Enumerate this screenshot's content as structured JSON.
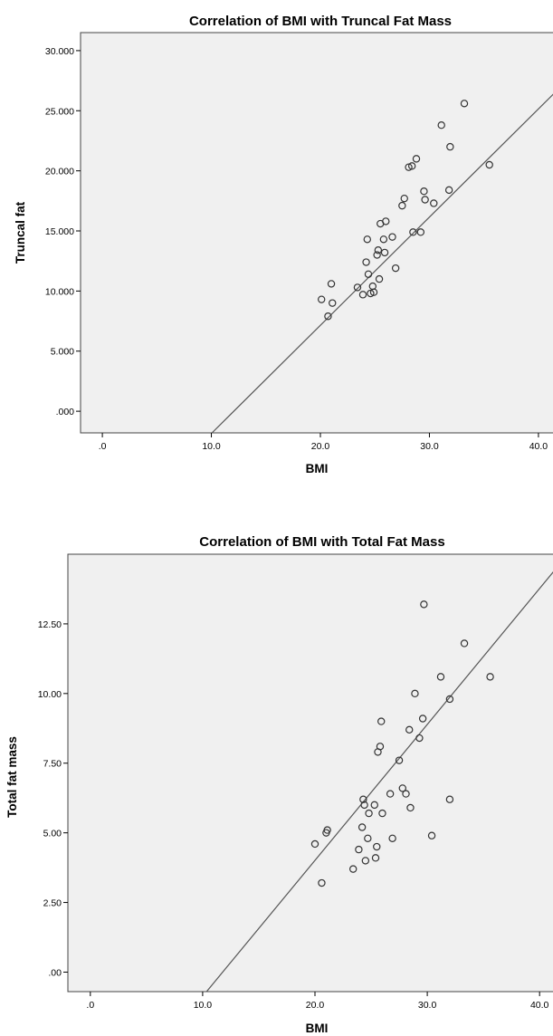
{
  "chart_data": [
    {
      "type": "scatter",
      "title": "Correlation of BMI with Truncal Fat Mass",
      "xlabel": "BMI",
      "ylabel": "Truncal fat",
      "xlim": [
        -2,
        42
      ],
      "ylim": [
        -1.8,
        31.5
      ],
      "xticks": [
        0,
        10,
        20,
        30,
        40
      ],
      "xtick_labels": [
        ".0",
        "10.0",
        "20.0",
        "30.0",
        "40.0"
      ],
      "yticks": [
        0,
        5,
        10,
        15,
        20,
        25,
        30
      ],
      "ytick_labels": [
        ".000",
        "5.000",
        "10.000",
        "15.000",
        "20.000",
        "25.000",
        "30.000"
      ],
      "fit_line": {
        "slope": 0.9,
        "intercept": -10.85
      },
      "x": [
        20.1,
        20.7,
        21.0,
        21.1,
        23.4,
        23.9,
        24.2,
        24.3,
        24.4,
        24.6,
        24.8,
        24.9,
        25.2,
        25.3,
        25.4,
        25.5,
        25.8,
        25.9,
        26.0,
        26.6,
        26.9,
        27.5,
        27.7,
        28.1,
        28.4,
        28.5,
        28.8,
        29.2,
        29.5,
        29.6,
        30.4,
        31.1,
        31.8,
        31.9,
        33.2,
        35.5
      ],
      "y": [
        9.3,
        7.9,
        10.6,
        9.0,
        10.3,
        9.7,
        12.4,
        14.3,
        11.4,
        9.8,
        10.4,
        9.9,
        13.0,
        13.4,
        11.0,
        15.6,
        14.3,
        13.2,
        15.8,
        14.5,
        11.9,
        17.1,
        17.7,
        20.3,
        20.4,
        14.9,
        21.0,
        14.9,
        18.3,
        17.6,
        17.3,
        23.8,
        18.4,
        22.0,
        25.6,
        20.5
      ]
    },
    {
      "type": "scatter",
      "title": "Correlation of BMI with Total  Fat Mass",
      "xlabel": "BMI",
      "ylabel": "Total fat mass",
      "xlim": [
        -2,
        42
      ],
      "ylim": [
        -0.7,
        15
      ],
      "xticks": [
        0,
        10,
        20,
        30,
        40
      ],
      "xtick_labels": [
        ".0",
        "10.0",
        "20.0",
        "30.0",
        "40.0"
      ],
      "yticks": [
        0,
        2.5,
        5,
        7.5,
        10,
        12.5
      ],
      "ytick_labels": [
        ".00",
        "2.50",
        "5.00",
        "7.50",
        "10.00",
        "12.50"
      ],
      "fit_line": {
        "slope": 0.488,
        "intercept": -5.75
      },
      "x": [
        20.0,
        20.6,
        21.0,
        21.1,
        23.4,
        23.9,
        24.2,
        24.3,
        24.4,
        24.5,
        24.7,
        24.8,
        25.3,
        25.4,
        25.5,
        25.6,
        25.8,
        25.9,
        26.0,
        26.7,
        26.9,
        27.5,
        27.8,
        28.1,
        28.4,
        28.5,
        28.9,
        29.3,
        29.6,
        29.7,
        30.4,
        31.2,
        32.0,
        32.0,
        33.3,
        35.6
      ],
      "y": [
        4.6,
        3.2,
        5.0,
        5.1,
        3.7,
        4.4,
        5.2,
        6.2,
        6.0,
        4.0,
        4.8,
        5.7,
        6.0,
        4.1,
        4.5,
        7.9,
        8.1,
        9.0,
        5.7,
        6.4,
        4.8,
        7.6,
        6.6,
        6.4,
        8.7,
        5.9,
        10.0,
        8.4,
        9.1,
        13.2,
        4.9,
        10.6,
        9.8,
        6.2,
        11.8,
        10.6
      ]
    }
  ]
}
